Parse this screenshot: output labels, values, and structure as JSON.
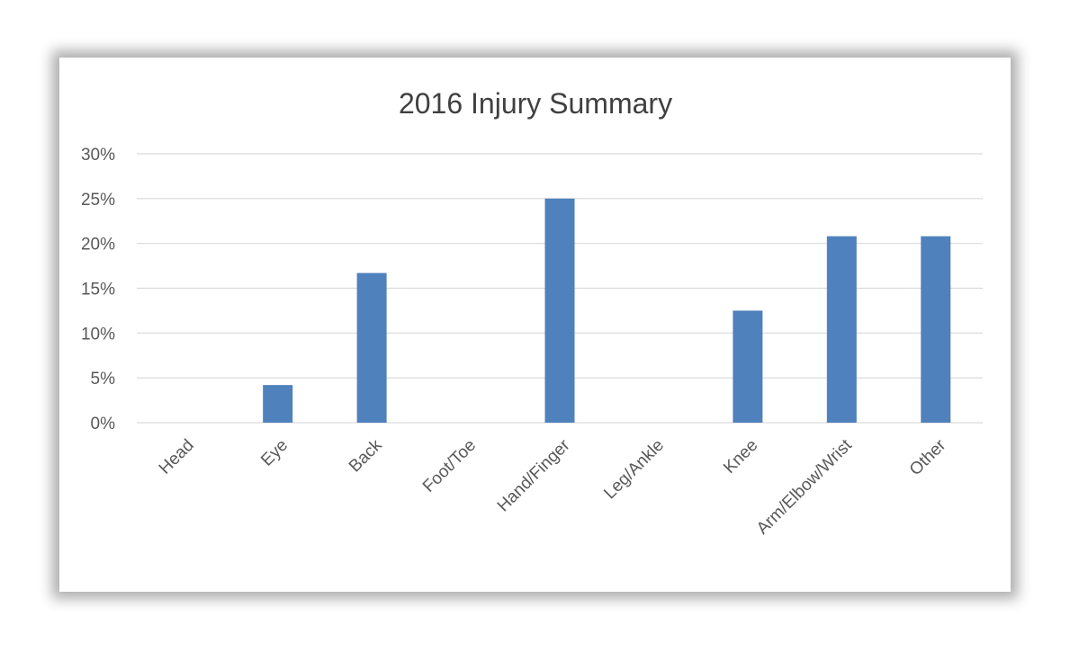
{
  "chart_data": {
    "type": "bar",
    "title": "2016 Injury Summary",
    "xlabel": "",
    "ylabel": "",
    "categories": [
      "Head",
      "Eye",
      "Back",
      "Foot/Toe",
      "Hand/Finger",
      "Leg/Ankle",
      "Knee",
      "Arm/Elbow/Wrist",
      "Other"
    ],
    "values": [
      0,
      4.2,
      16.7,
      0,
      25.0,
      0,
      12.5,
      20.8,
      20.8
    ],
    "ylim": [
      0,
      30
    ],
    "yticks": [
      0,
      5,
      10,
      15,
      20,
      25,
      30
    ],
    "ytick_labels": [
      "0%",
      "5%",
      "10%",
      "15%",
      "20%",
      "25%",
      "30%"
    ],
    "grid": true,
    "legend": "none",
    "bar_color": "#4f81bd"
  }
}
